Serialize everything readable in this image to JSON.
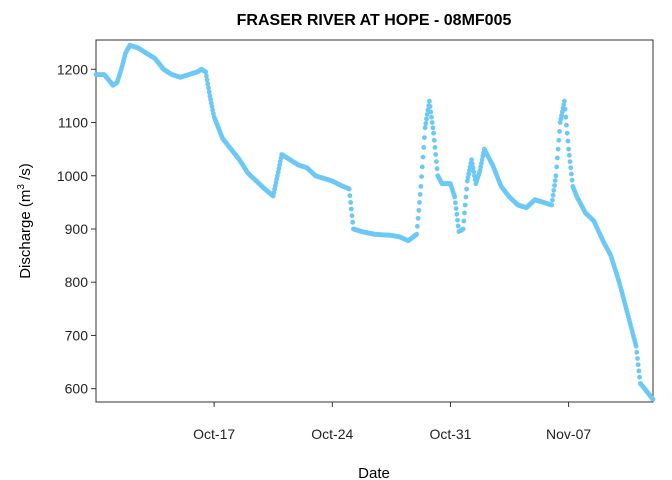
{
  "chart_data": {
    "type": "scatter",
    "title": "FRASER RIVER AT HOPE - 08MF005",
    "xlabel": "Date",
    "ylabel": "Discharge (m",
    "ylabel_sup": "3",
    "ylabel_tail": " /s)",
    "x_range": [
      "2015-10-10",
      "2015-11-12"
    ],
    "ylim": [
      575,
      1255
    ],
    "y_ticks": [
      600,
      700,
      800,
      900,
      1000,
      1100,
      1200
    ],
    "x_ticks": [
      {
        "label": "Oct-17",
        "date": "2015-10-17"
      },
      {
        "label": "Oct-24",
        "date": "2015-10-24"
      },
      {
        "label": "Oct-31",
        "date": "2015-10-31"
      },
      {
        "label": "Nov-07",
        "date": "2015-11-07"
      }
    ],
    "point_color": "#6cc8f5",
    "grid": false,
    "legend": "none",
    "series": [
      {
        "points": [
          [
            "2015-10-10 00:00",
            1190
          ],
          [
            "2015-10-10 12:00",
            1190
          ],
          [
            "2015-10-10 18:00",
            1180
          ],
          [
            "2015-10-11 00:00",
            1170
          ],
          [
            "2015-10-11 06:00",
            1175
          ],
          [
            "2015-10-11 12:00",
            1200
          ],
          [
            "2015-10-11 18:00",
            1230
          ],
          [
            "2015-10-12 00:00",
            1245
          ],
          [
            "2015-10-12 12:00",
            1240
          ],
          [
            "2015-10-13 00:00",
            1230
          ],
          [
            "2015-10-13 12:00",
            1220
          ],
          [
            "2015-10-14 00:00",
            1200
          ],
          [
            "2015-10-14 12:00",
            1190
          ],
          [
            "2015-10-15 00:00",
            1185
          ],
          [
            "2015-10-15 12:00",
            1190
          ],
          [
            "2015-10-16 00:00",
            1195
          ],
          [
            "2015-10-16 06:00",
            1200
          ],
          [
            "2015-10-16 12:00",
            1195
          ],
          [
            "2015-10-16 18:00",
            1150
          ],
          [
            "2015-10-17 00:00",
            1110
          ],
          [
            "2015-10-17 12:00",
            1070
          ],
          [
            "2015-10-18 00:00",
            1050
          ],
          [
            "2015-10-18 12:00",
            1030
          ],
          [
            "2015-10-19 00:00",
            1005
          ],
          [
            "2015-10-19 12:00",
            990
          ],
          [
            "2015-10-20 00:00",
            975
          ],
          [
            "2015-10-20 12:00",
            962
          ],
          [
            "2015-10-20 18:00",
            1000
          ],
          [
            "2015-10-21 00:00",
            1040
          ],
          [
            "2015-10-21 12:00",
            1030
          ],
          [
            "2015-10-22 00:00",
            1020
          ],
          [
            "2015-10-22 12:00",
            1015
          ],
          [
            "2015-10-23 00:00",
            1000
          ],
          [
            "2015-10-23 12:00",
            995
          ],
          [
            "2015-10-24 00:00",
            990
          ],
          [
            "2015-10-24 12:00",
            982
          ],
          [
            "2015-10-25 00:00",
            975
          ],
          [
            "2015-10-25 06:00",
            900
          ],
          [
            "2015-10-25 18:00",
            895
          ],
          [
            "2015-10-26 12:00",
            890
          ],
          [
            "2015-10-27 12:00",
            888
          ],
          [
            "2015-10-28 00:00",
            885
          ],
          [
            "2015-10-28 12:00",
            878
          ],
          [
            "2015-10-29 00:00",
            890
          ],
          [
            "2015-10-29 06:00",
            980
          ],
          [
            "2015-10-29 12:00",
            1090
          ],
          [
            "2015-10-29 18:00",
            1140
          ],
          [
            "2015-10-30 00:00",
            1080
          ],
          [
            "2015-10-30 06:00",
            1000
          ],
          [
            "2015-10-30 12:00",
            985
          ],
          [
            "2015-10-31 00:00",
            985
          ],
          [
            "2015-10-31 06:00",
            960
          ],
          [
            "2015-10-31 12:00",
            895
          ],
          [
            "2015-10-31 18:00",
            900
          ],
          [
            "2015-11-01 00:00",
            990
          ],
          [
            "2015-11-01 06:00",
            1030
          ],
          [
            "2015-11-01 12:00",
            985
          ],
          [
            "2015-11-01 18:00",
            1010
          ],
          [
            "2015-11-02 00:00",
            1050
          ],
          [
            "2015-11-02 12:00",
            1020
          ],
          [
            "2015-11-03 00:00",
            980
          ],
          [
            "2015-11-03 12:00",
            960
          ],
          [
            "2015-11-04 00:00",
            945
          ],
          [
            "2015-11-04 12:00",
            940
          ],
          [
            "2015-11-05 00:00",
            955
          ],
          [
            "2015-11-05 12:00",
            950
          ],
          [
            "2015-11-06 00:00",
            945
          ],
          [
            "2015-11-06 06:00",
            1000
          ],
          [
            "2015-11-06 12:00",
            1100
          ],
          [
            "2015-11-06 18:00",
            1140
          ],
          [
            "2015-11-07 00:00",
            1050
          ],
          [
            "2015-11-07 06:00",
            980
          ],
          [
            "2015-11-07 12:00",
            960
          ],
          [
            "2015-11-08 00:00",
            930
          ],
          [
            "2015-11-08 12:00",
            915
          ],
          [
            "2015-11-09 00:00",
            880
          ],
          [
            "2015-11-09 12:00",
            850
          ],
          [
            "2015-11-10 00:00",
            800
          ],
          [
            "2015-11-10 12:00",
            740
          ],
          [
            "2015-11-11 00:00",
            680
          ],
          [
            "2015-11-11 06:00",
            610
          ],
          [
            "2015-11-11 18:00",
            590
          ],
          [
            "2015-11-12 00:00",
            580
          ]
        ]
      }
    ]
  }
}
